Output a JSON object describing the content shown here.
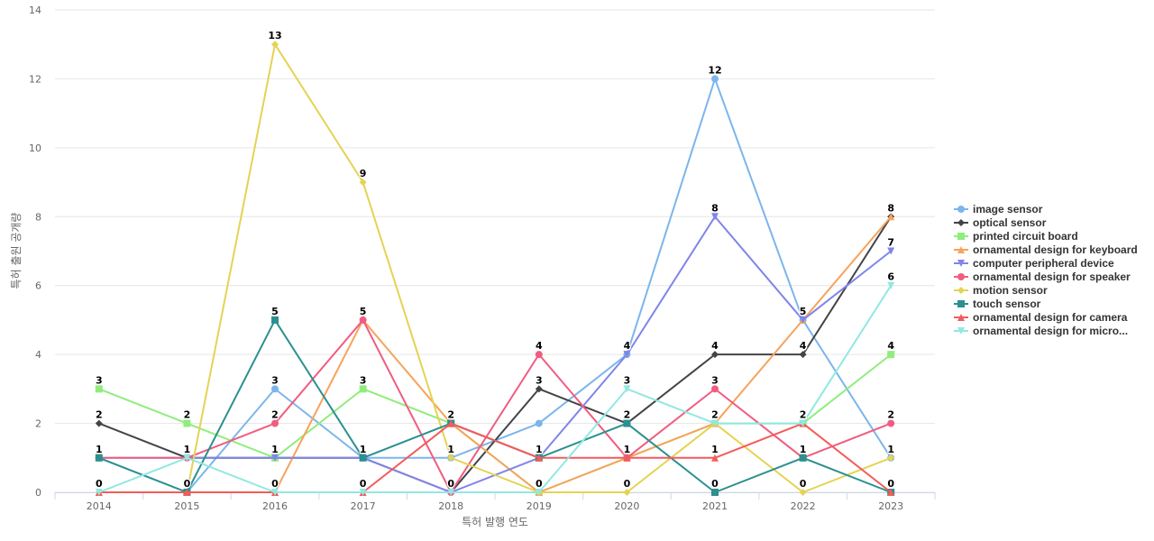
{
  "chart_data": {
    "type": "line",
    "title": "",
    "xlabel": "특허 발행 연도",
    "ylabel": "특허 출원 공개량",
    "categories": [
      "2014",
      "2015",
      "2016",
      "2017",
      "2018",
      "2019",
      "2020",
      "2021",
      "2022",
      "2023"
    ],
    "ylim": [
      0,
      14
    ],
    "yticks": [
      0,
      2,
      4,
      6,
      8,
      10,
      12,
      14
    ],
    "grid": true,
    "legend_position": "right",
    "series": [
      {
        "name": "image sensor",
        "color": "#7cb5ec",
        "marker": "circle",
        "values": [
          1,
          0,
          3,
          1,
          1,
          2,
          4,
          12,
          5,
          1
        ]
      },
      {
        "name": "optical sensor",
        "color": "#434348",
        "marker": "diamond",
        "values": [
          2,
          1,
          1,
          1,
          0,
          3,
          2,
          4,
          4,
          8
        ]
      },
      {
        "name": "printed circuit board",
        "color": "#90ed7d",
        "marker": "square",
        "values": [
          3,
          2,
          1,
          3,
          2,
          0,
          1,
          2,
          2,
          4
        ]
      },
      {
        "name": "ornamental design for keyboard",
        "color": "#f7a35c",
        "marker": "triangle",
        "values": [
          0,
          0,
          0,
          5,
          2,
          0,
          1,
          2,
          5,
          8
        ]
      },
      {
        "name": "computer peripheral device",
        "color": "#8085e9",
        "marker": "triangle-down",
        "values": [
          1,
          1,
          1,
          1,
          0,
          1,
          4,
          8,
          5,
          7
        ]
      },
      {
        "name": "ornamental design for speaker",
        "color": "#f15c80",
        "marker": "circle",
        "values": [
          1,
          1,
          2,
          5,
          0,
          4,
          1,
          3,
          1,
          2
        ]
      },
      {
        "name": "motion sensor",
        "color": "#e4d354",
        "marker": "diamond",
        "values": [
          0,
          0,
          13,
          9,
          1,
          0,
          0,
          2,
          0,
          1
        ]
      },
      {
        "name": "touch sensor",
        "color": "#2b908f",
        "marker": "square",
        "values": [
          1,
          0,
          5,
          1,
          2,
          1,
          2,
          0,
          1,
          0
        ]
      },
      {
        "name": "ornamental design for camera",
        "color": "#f45b5b",
        "marker": "triangle",
        "values": [
          0,
          0,
          0,
          0,
          2,
          1,
          1,
          1,
          2,
          0
        ]
      },
      {
        "name": "ornamental design for micro...",
        "color": "#91e8e1",
        "marker": "triangle-down",
        "values": [
          0,
          1,
          0,
          0,
          0,
          0,
          3,
          2,
          2,
          6
        ]
      }
    ],
    "data_labels": [
      {
        "x": "2014",
        "value": 3
      },
      {
        "x": "2014",
        "value": 2
      },
      {
        "x": "2014",
        "value": 1
      },
      {
        "x": "2014",
        "value": 0
      },
      {
        "x": "2015",
        "value": 2
      },
      {
        "x": "2015",
        "value": 1
      },
      {
        "x": "2015",
        "value": 0
      },
      {
        "x": "2016",
        "value": 13
      },
      {
        "x": "2016",
        "value": 5
      },
      {
        "x": "2016",
        "value": 3
      },
      {
        "x": "2016",
        "value": 2
      },
      {
        "x": "2016",
        "value": 1
      },
      {
        "x": "2016",
        "value": 0
      },
      {
        "x": "2017",
        "value": 9
      },
      {
        "x": "2017",
        "value": 5
      },
      {
        "x": "2017",
        "value": 3
      },
      {
        "x": "2017",
        "value": 1
      },
      {
        "x": "2017",
        "value": 0
      },
      {
        "x": "2018",
        "value": 2
      },
      {
        "x": "2018",
        "value": 1
      },
      {
        "x": "2018",
        "value": 0
      },
      {
        "x": "2019",
        "value": 4
      },
      {
        "x": "2019",
        "value": 3
      },
      {
        "x": "2019",
        "value": 1
      },
      {
        "x": "2019",
        "value": 0
      },
      {
        "x": "2020",
        "value": 4
      },
      {
        "x": "2020",
        "value": 3
      },
      {
        "x": "2020",
        "value": 2
      },
      {
        "x": "2020",
        "value": 1
      },
      {
        "x": "2020",
        "value": 0
      },
      {
        "x": "2021",
        "value": 12
      },
      {
        "x": "2021",
        "value": 8
      },
      {
        "x": "2021",
        "value": 4
      },
      {
        "x": "2021",
        "value": 3
      },
      {
        "x": "2021",
        "value": 2
      },
      {
        "x": "2021",
        "value": 1
      },
      {
        "x": "2021",
        "value": 0
      },
      {
        "x": "2022",
        "value": 5
      },
      {
        "x": "2022",
        "value": 4
      },
      {
        "x": "2022",
        "value": 2
      },
      {
        "x": "2022",
        "value": 1
      },
      {
        "x": "2022",
        "value": 0
      },
      {
        "x": "2023",
        "value": 8
      },
      {
        "x": "2023",
        "value": 7
      },
      {
        "x": "2023",
        "value": 6
      },
      {
        "x": "2023",
        "value": 4
      },
      {
        "x": "2023",
        "value": 2
      },
      {
        "x": "2023",
        "value": 1
      },
      {
        "x": "2023",
        "value": 0
      }
    ]
  }
}
